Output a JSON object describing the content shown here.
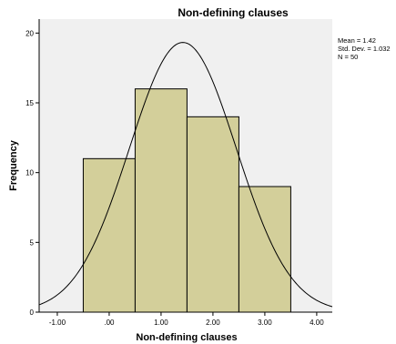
{
  "chart_data": {
    "type": "bar",
    "title": "Non-defining clauses",
    "xlabel": "Non-defining clauses",
    "ylabel": "Frequency",
    "bins": [
      {
        "from": -0.5,
        "to": 0.5,
        "value": 11
      },
      {
        "from": 0.5,
        "to": 1.5,
        "value": 16
      },
      {
        "from": 1.5,
        "to": 2.5,
        "value": 14
      },
      {
        "from": 2.5,
        "to": 3.5,
        "value": 9
      }
    ],
    "xlim": [
      -1.35,
      4.3
    ],
    "ylim": [
      0,
      21
    ],
    "x_ticks": [
      -1,
      0,
      1,
      2,
      3,
      4
    ],
    "x_tick_labels": [
      "-1.00",
      ".00",
      "1.00",
      "2.00",
      "3.00",
      "4.00"
    ],
    "y_ticks": [
      0,
      5,
      10,
      15,
      20
    ],
    "y_tick_labels": [
      "0",
      "5",
      "10",
      "15",
      "20"
    ],
    "normal_curve": {
      "mean": 1.42,
      "sd": 1.032,
      "n": 50,
      "bin_width": 1
    },
    "stats": {
      "mean": "Mean = 1.42",
      "sd": "Std. Dev. = 1.032",
      "n": "N = 50"
    },
    "colors": {
      "bar_fill": "#d3cf9a",
      "bar_stroke": "#000000",
      "plot_background": "#f0f0f0",
      "curve": "#000000"
    },
    "grid": false,
    "legend": "none"
  }
}
